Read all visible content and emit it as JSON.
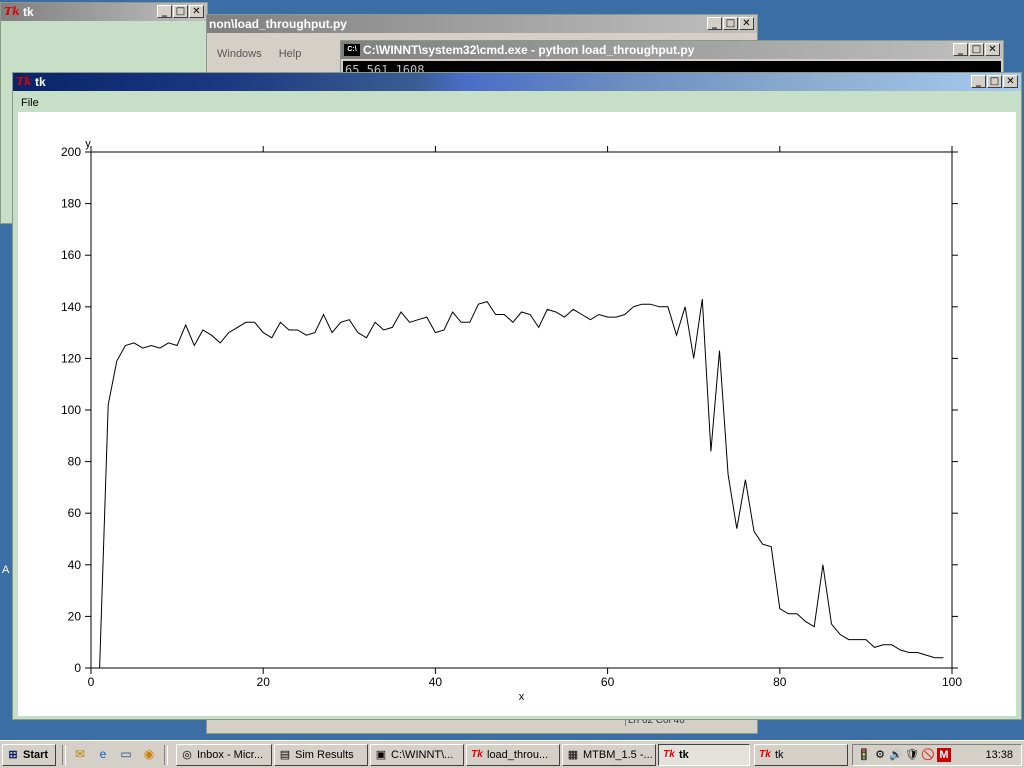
{
  "desktop": {
    "left_clip_label": "A"
  },
  "windows": {
    "back_tk": {
      "title": "tk"
    },
    "editor": {
      "title_fragment": "non\\load_throughput.py",
      "menu": [
        "Windows",
        "Help"
      ]
    },
    "cmd": {
      "title": "C:\\WINNT\\system32\\cmd.exe - python load_throughput.py",
      "output_line": "65 561 1608"
    },
    "status_fragment": "Ln 62  Col 46",
    "main_tk": {
      "title": "tk",
      "menu": [
        "File"
      ]
    }
  },
  "window_controls": {
    "minimize": "_",
    "maximize": "□",
    "close": "✕"
  },
  "icons": {
    "tk_logo": "Tk",
    "cmd": "C:\\",
    "start": "⊞"
  },
  "chart_data": {
    "type": "line",
    "xlabel": "x",
    "ylabel": "y",
    "xlim": [
      0,
      100
    ],
    "ylim": [
      0,
      200
    ],
    "xticks": [
      0,
      20,
      40,
      60,
      80,
      100
    ],
    "yticks": [
      0,
      20,
      40,
      60,
      80,
      100,
      120,
      140,
      160,
      180,
      200
    ],
    "grid": false,
    "series": [
      {
        "x": [
          1,
          2,
          3,
          4,
          5,
          6,
          7,
          8,
          9,
          10,
          11,
          12,
          13,
          14,
          15,
          16,
          17,
          18,
          19,
          20,
          21,
          22,
          23,
          24,
          25,
          26,
          27,
          28,
          29,
          30,
          31,
          32,
          33,
          34,
          35,
          36,
          37,
          38,
          39,
          40,
          41,
          42,
          43,
          44,
          45,
          46,
          47,
          48,
          49,
          50,
          51,
          52,
          53,
          54,
          55,
          56,
          57,
          58,
          59,
          60,
          61,
          62,
          63,
          64,
          65,
          66,
          67,
          68,
          69,
          70,
          71,
          72,
          73,
          74,
          75,
          76,
          77,
          78,
          79,
          80,
          81,
          82,
          83,
          84,
          85,
          86,
          87,
          88,
          89,
          90,
          91,
          92,
          93,
          94,
          95,
          96,
          97,
          98,
          99
        ],
        "values": [
          0,
          102,
          119,
          125,
          126,
          124,
          125,
          124,
          126,
          125,
          133,
          125,
          131,
          129,
          126,
          130,
          132,
          134,
          134,
          130,
          128,
          134,
          131,
          131,
          129,
          130,
          137,
          130,
          134,
          135,
          130,
          128,
          134,
          131,
          132,
          138,
          134,
          135,
          136,
          130,
          131,
          138,
          134,
          134,
          141,
          142,
          137,
          137,
          134,
          138,
          137,
          132,
          139,
          138,
          136,
          139,
          137,
          135,
          137,
          136,
          136,
          137,
          140,
          141,
          141,
          140,
          140,
          129,
          140,
          120,
          143,
          84,
          123,
          75,
          54,
          73,
          53,
          48,
          47,
          23,
          21,
          21,
          18,
          16,
          40,
          17,
          13,
          11,
          11,
          11,
          8,
          9,
          9,
          7,
          6,
          6,
          5,
          4,
          4
        ]
      }
    ]
  },
  "taskbar": {
    "start_label": "Start",
    "quick_launch": [
      "outlook-icon",
      "ie-icon",
      "desktop-icon",
      "media-icon"
    ],
    "tasks": [
      {
        "label": "Inbox - Micr...",
        "icon": "◎"
      },
      {
        "label": "Sim Results",
        "icon": "▤"
      },
      {
        "label": "C:\\WINNT\\...",
        "icon": "▣"
      },
      {
        "label": "load_throu...",
        "icon": "Tk"
      },
      {
        "label": "MTBM_1.5 -...",
        "icon": "▦"
      },
      {
        "label": "tk",
        "icon": "Tk",
        "active": true
      },
      {
        "label": "tk",
        "icon": "Tk"
      }
    ],
    "tray_icons": [
      "🚦",
      "⚙",
      "🔊",
      "🛡",
      "🚫",
      "M"
    ],
    "clock": "13:38"
  }
}
